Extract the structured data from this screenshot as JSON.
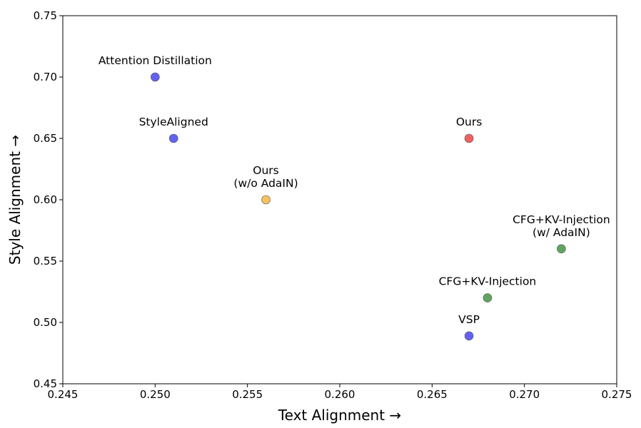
{
  "chart_data": {
    "type": "scatter",
    "title": "",
    "xlabel": "Text Alignment →",
    "ylabel": "Style Alignment →",
    "xlim": [
      0.245,
      0.275
    ],
    "ylim": [
      0.45,
      0.75
    ],
    "xticks": [
      "0.245",
      "0.250",
      "0.255",
      "0.260",
      "0.265",
      "0.270",
      "0.275"
    ],
    "yticks": [
      "0.45",
      "0.50",
      "0.55",
      "0.60",
      "0.65",
      "0.70",
      "0.75"
    ],
    "grid": false,
    "points": [
      {
        "label": [
          "Attention Distillation"
        ],
        "x": 0.25,
        "y": 0.7,
        "color": "#6262f0"
      },
      {
        "label": [
          "StyleAligned"
        ],
        "x": 0.251,
        "y": 0.65,
        "color": "#6262f0"
      },
      {
        "label": [
          "Ours",
          "(w/o AdaIN)"
        ],
        "x": 0.256,
        "y": 0.6,
        "color": "#f7c160"
      },
      {
        "label": [
          "Ours"
        ],
        "x": 0.267,
        "y": 0.65,
        "color": "#ee6262"
      },
      {
        "label": [
          "CFG+KV-Injection",
          "(w/ AdaIN)"
        ],
        "x": 0.272,
        "y": 0.56,
        "color": "#5fa55f"
      },
      {
        "label": [
          "CFG+KV-Injection"
        ],
        "x": 0.268,
        "y": 0.52,
        "color": "#5fa55f"
      },
      {
        "label": [
          "VSP"
        ],
        "x": 0.267,
        "y": 0.489,
        "color": "#6262f0"
      }
    ]
  }
}
